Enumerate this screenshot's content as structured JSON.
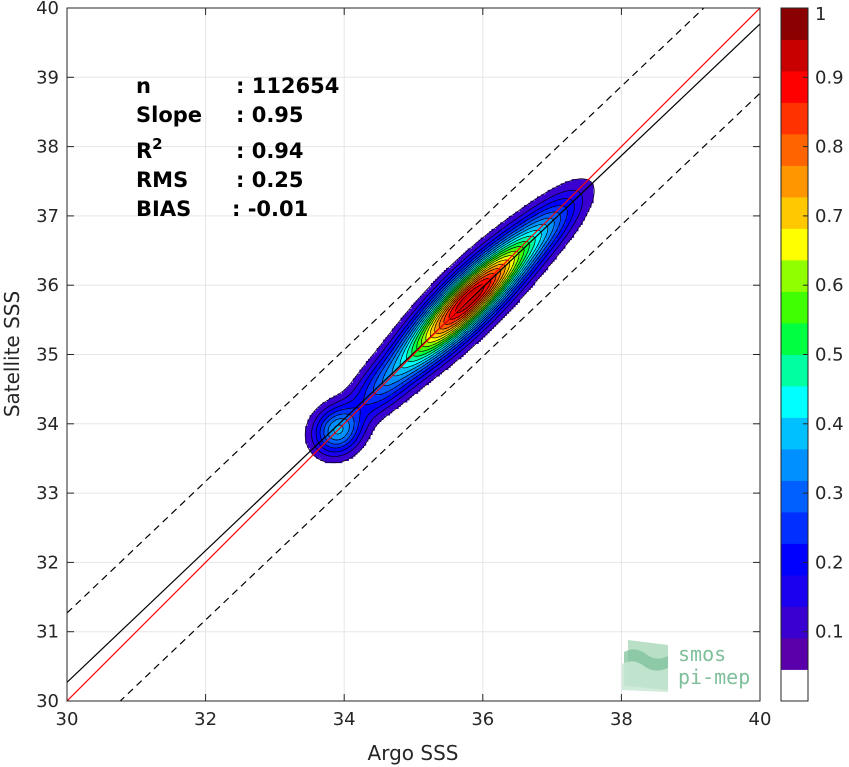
{
  "chart_data": {
    "type": "heatmap",
    "subtype": "density-contour-scatter",
    "title": "",
    "xlabel": "Argo SSS",
    "ylabel": "Satellite SSS",
    "xlim": [
      30,
      40
    ],
    "ylim": [
      30,
      40
    ],
    "xticks": [
      30,
      32,
      34,
      36,
      38,
      40
    ],
    "yticks": [
      30,
      31,
      32,
      33,
      34,
      35,
      36,
      37,
      38,
      39,
      40
    ],
    "grid": true,
    "stats": [
      {
        "label": "n",
        "value": ": 112654"
      },
      {
        "label": "Slope",
        "value": ": 0.95"
      },
      {
        "label": "R",
        "sup": "2",
        "value": ": 0.94"
      },
      {
        "label": "RMS",
        "value": ": 0.25"
      },
      {
        "label": "BIAS",
        "value": ": -0.01"
      }
    ],
    "lines": {
      "identity": {
        "slope": 1,
        "intercept": 0,
        "color": "#ff0000"
      },
      "fit": {
        "slope": 0.95,
        "intercept": 1.77,
        "color": "#000000"
      },
      "band_upper": {
        "slope": 0.95,
        "intercept": 2.77,
        "color": "#000000",
        "style": "dashed"
      },
      "band_lower": {
        "slope": 0.95,
        "intercept": 0.77,
        "color": "#000000",
        "style": "dashed"
      }
    },
    "density_levels": [
      0.05,
      0.1,
      0.15,
      0.2,
      0.25,
      0.3,
      0.35,
      0.4,
      0.45,
      0.5,
      0.55,
      0.6,
      0.65,
      0.7,
      0.75,
      0.8,
      0.85,
      0.9,
      0.95
    ],
    "colormap": [
      "#ffffff",
      "#5a00aa",
      "#3a00d0",
      "#1a00ee",
      "#0000ff",
      "#0030ff",
      "#0060ff",
      "#0090ff",
      "#00c0ff",
      "#00ffff",
      "#00ffa0",
      "#00ff40",
      "#40ff00",
      "#90ff00",
      "#ffff00",
      "#ffc800",
      "#ff9600",
      "#ff6400",
      "#ff3200",
      "#ff0000",
      "#c80000",
      "#8b0000"
    ],
    "colorbar": {
      "ticks": [
        0.1,
        0.2,
        0.3,
        0.4,
        0.5,
        0.6,
        0.7,
        0.8,
        0.9,
        1
      ],
      "tick_labels": [
        "0.1",
        "0.2",
        "0.3",
        "0.4",
        "0.5",
        "0.6",
        "0.7",
        "0.8",
        "0.9",
        "1"
      ],
      "range": [
        0,
        1
      ]
    },
    "density_components": [
      {
        "x": 35.7,
        "y": 35.7,
        "weight": 1.0,
        "sigma_along": 0.75,
        "sigma_across": 0.22
      },
      {
        "x": 36.4,
        "y": 36.35,
        "weight": 0.35,
        "sigma_along": 0.75,
        "sigma_across": 0.21
      },
      {
        "x": 37.0,
        "y": 36.9,
        "weight": 0.12,
        "sigma_along": 0.45,
        "sigma_across": 0.18
      },
      {
        "x": 34.5,
        "y": 34.5,
        "weight": 0.22,
        "sigma_along": 0.4,
        "sigma_across": 0.2
      },
      {
        "x": 33.9,
        "y": 33.9,
        "weight": 0.4,
        "sigma_along": 0.25,
        "sigma_across": 0.22
      },
      {
        "x": 35.0,
        "y": 35.0,
        "weight": 0.12,
        "sigma_along": 0.4,
        "sigma_across": 0.2
      }
    ]
  },
  "logo": {
    "line1": "smos",
    "line2": "pi-mep",
    "color": "#7fbf9a"
  }
}
